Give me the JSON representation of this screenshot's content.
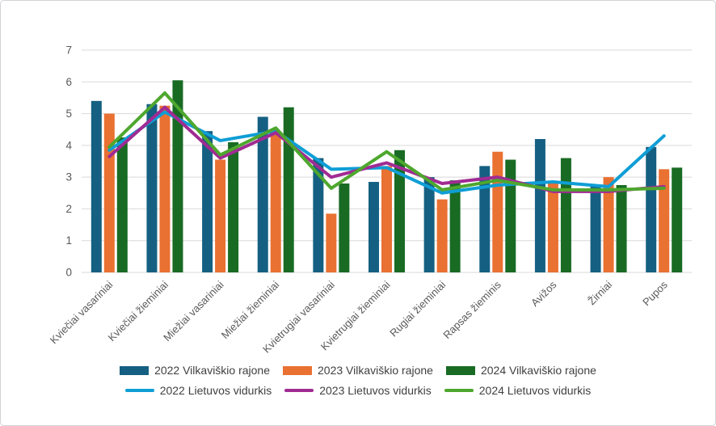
{
  "chart_data": {
    "type": "combo_bar_line",
    "title": "",
    "xlabel": "",
    "ylabel": "",
    "ylim": [
      0,
      7
    ],
    "y_ticks": [
      0,
      1,
      2,
      3,
      4,
      5,
      6,
      7
    ],
    "grid": true,
    "legend_position": "bottom",
    "categories": [
      "Kviečiai vasariniai",
      "Kviečiai žieminiai",
      "Miežiai vasariniai",
      "Miežiai žieminiai",
      "Kvietrugiai vasariniai",
      "Kvietrugiai žieminiai",
      "Rugiai žieminiai",
      "Rapsas žieminis",
      "Avižos",
      "Žirniai",
      "Pupos"
    ],
    "bar_series": [
      {
        "name": "2022 Vilkaviškio rajone",
        "color": "#156082",
        "values": [
          5.4,
          5.3,
          4.45,
          4.9,
          3.6,
          2.85,
          3.0,
          3.35,
          4.2,
          2.7,
          3.95
        ]
      },
      {
        "name": "2023 Vilkaviškio rajone",
        "color": "#E97132",
        "values": [
          5.0,
          5.25,
          3.55,
          4.4,
          1.85,
          3.35,
          2.3,
          3.8,
          2.8,
          3.0,
          3.25
        ]
      },
      {
        "name": "2024 Vilkaviškio rajone",
        "color": "#196B24",
        "values": [
          4.25,
          6.05,
          4.1,
          5.2,
          2.8,
          3.85,
          2.9,
          3.55,
          3.6,
          2.75,
          3.3
        ]
      }
    ],
    "line_series": [
      {
        "name": "2022 Lietuvos vidurkis",
        "color": "#0F9ED5",
        "values": [
          3.85,
          5.05,
          4.15,
          4.45,
          3.25,
          3.3,
          2.5,
          2.75,
          2.85,
          2.7,
          4.3
        ]
      },
      {
        "name": "2023 Lietuvos vidurkis",
        "color": "#A02B93",
        "values": [
          3.65,
          5.2,
          3.6,
          4.4,
          3.0,
          3.45,
          2.8,
          3.0,
          2.55,
          2.55,
          2.7
        ]
      },
      {
        "name": "2024 Lietuvos vidurkis",
        "color": "#4EA72E",
        "values": [
          3.95,
          5.65,
          3.7,
          4.55,
          2.65,
          3.8,
          2.6,
          2.9,
          2.6,
          2.6,
          2.65
        ]
      }
    ],
    "styles": {
      "background": "#FFFFFF",
      "card_border": "#D2D2D8",
      "gridline": "#D9D9D9",
      "axis_line": "#D9D9D9",
      "axis_text": "#595959",
      "legend_text": "#404040"
    }
  }
}
